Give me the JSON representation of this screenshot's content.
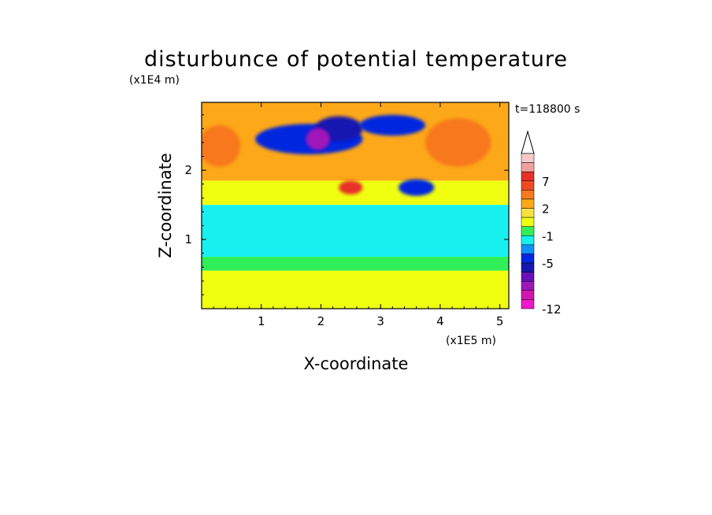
{
  "chart_data": {
    "type": "heatmap",
    "title": "disturbunce of potential temperature",
    "xlabel": "X-coordinate",
    "ylabel": "Z-coordinate",
    "x_unit_label": "(x1E5 m)",
    "y_unit_label": "(x1E4 m)",
    "time_label": "t=118800 s",
    "xlim": [
      0,
      5.15
    ],
    "ylim": [
      0,
      2.98
    ],
    "x_ticks": [
      "1",
      "2",
      "3",
      "4",
      "5"
    ],
    "y_ticks": [
      "1",
      "2"
    ],
    "colorbar": {
      "levels": [
        {
          "color": "#f8c8c8"
        },
        {
          "color": "#f0a0a0"
        },
        {
          "color": "#e83028"
        },
        {
          "color": "#f04a20"
        },
        {
          "color": "#f8781c"
        },
        {
          "color": "#fca818"
        },
        {
          "color": "#f8e040"
        },
        {
          "color": "#f0ff10"
        },
        {
          "color": "#30ef58"
        },
        {
          "color": "#18f0f0"
        },
        {
          "color": "#1090ff"
        },
        {
          "color": "#0028e0"
        },
        {
          "color": "#1818b0"
        },
        {
          "color": "#6810b8"
        },
        {
          "color": "#a018b8"
        },
        {
          "color": "#d018b0"
        },
        {
          "color": "#f018c8"
        }
      ],
      "tick_labels": [
        "7",
        "2",
        "-1",
        "-5",
        "-12"
      ]
    },
    "features": [
      {
        "kind": "layer",
        "z": [
          0,
          0.55
        ],
        "value_color": "#f0ff10"
      },
      {
        "kind": "layer",
        "z": [
          0.55,
          0.75
        ],
        "value_color": "#30ef58"
      },
      {
        "kind": "layer",
        "z": [
          0.75,
          1.5
        ],
        "value_color": "#18f0f0"
      },
      {
        "kind": "layer",
        "z": [
          1.5,
          1.85
        ],
        "value_color": "#f0ff10"
      },
      {
        "kind": "layer",
        "z": [
          1.85,
          2.98
        ],
        "value_color": "#fca818"
      },
      {
        "kind": "blob",
        "x": 4.3,
        "z": 2.4,
        "rx": 0.55,
        "rz": 0.35,
        "value_color": "#f8781c"
      },
      {
        "kind": "blob",
        "x": 0.3,
        "z": 2.35,
        "rx": 0.35,
        "rz": 0.3,
        "value_color": "#f8781c"
      },
      {
        "kind": "blob",
        "x": 1.8,
        "z": 2.45,
        "rx": 0.9,
        "rz": 0.22,
        "value_color": "#0028e0"
      },
      {
        "kind": "blob",
        "x": 2.3,
        "z": 2.6,
        "rx": 0.4,
        "rz": 0.18,
        "value_color": "#1818b0"
      },
      {
        "kind": "blob",
        "x": 1.95,
        "z": 2.45,
        "rx": 0.2,
        "rz": 0.16,
        "value_color": "#a018b8"
      },
      {
        "kind": "blob",
        "x": 3.2,
        "z": 2.65,
        "rx": 0.55,
        "rz": 0.15,
        "value_color": "#0028e0"
      },
      {
        "kind": "blob",
        "x": 3.6,
        "z": 1.75,
        "rx": 0.3,
        "rz": 0.12,
        "value_color": "#0028e0"
      },
      {
        "kind": "blob",
        "x": 2.5,
        "z": 1.75,
        "rx": 0.2,
        "rz": 0.1,
        "value_color": "#e83028"
      }
    ]
  }
}
